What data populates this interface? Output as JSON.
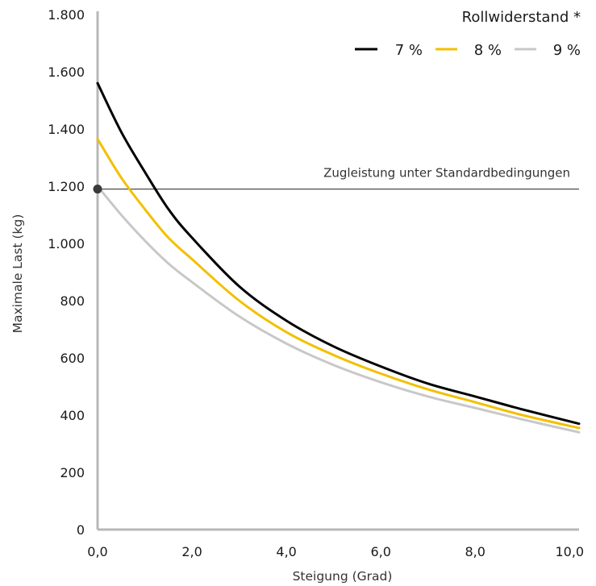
{
  "chart_data": {
    "type": "line",
    "xlabel": "Steigung (Grad)",
    "ylabel": "Maximale Last (kg)",
    "xlim": [
      0,
      10.2
    ],
    "ylim": [
      0,
      1800
    ],
    "x_ticks": [
      0,
      2,
      4,
      6,
      8,
      10
    ],
    "x_tick_labels": [
      "0,0",
      "2,0",
      "4,0",
      "6,0",
      "8,0",
      "10,0"
    ],
    "y_ticks": [
      0,
      200,
      400,
      600,
      800,
      1000,
      1200,
      1400,
      1600,
      1800
    ],
    "y_tick_labels": [
      "0",
      "200",
      "400",
      "600",
      "800",
      "1.000",
      "1.200",
      "1.400",
      "1.600",
      "1.800"
    ],
    "grid": false,
    "legend": {
      "title": "Rollwiderstand *",
      "placement": "top-right"
    },
    "series": [
      {
        "name": "7 %",
        "color": "#000000",
        "x": [
          0,
          0.5,
          1,
          1.5,
          2,
          3,
          4,
          5,
          6,
          7,
          8,
          9,
          10.2
        ],
        "y": [
          1560,
          1390,
          1250,
          1120,
          1020,
          850,
          730,
          640,
          570,
          510,
          465,
          420,
          370
        ]
      },
      {
        "name": "8 %",
        "color": "#f2c000",
        "x": [
          0,
          0.5,
          1,
          1.5,
          2,
          3,
          4,
          5,
          6,
          7,
          8,
          9,
          10.2
        ],
        "y": [
          1365,
          1230,
          1120,
          1020,
          945,
          800,
          690,
          610,
          545,
          490,
          445,
          400,
          355
        ]
      },
      {
        "name": "9 %",
        "color": "#c8c8c8",
        "x": [
          0,
          0.5,
          1,
          1.5,
          2,
          3,
          4,
          5,
          6,
          7,
          8,
          9,
          10.2
        ],
        "y": [
          1200,
          1100,
          1010,
          930,
          865,
          745,
          650,
          575,
          515,
          465,
          425,
          385,
          340
        ]
      }
    ],
    "reference_line": {
      "label": "Zugleistung unter Standardbedingungen",
      "y": 1190,
      "x_start": 0,
      "marker_at_start": true
    }
  }
}
